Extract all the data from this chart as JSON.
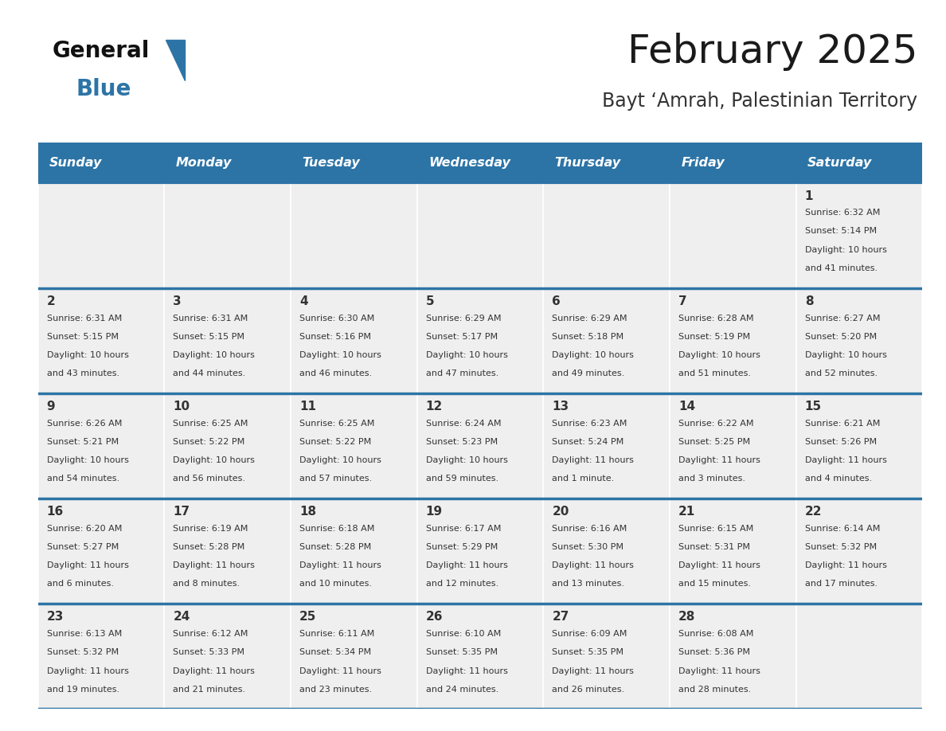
{
  "title": "February 2025",
  "subtitle": "Bayt ‘Amrah, Palestinian Territory",
  "header_color": "#2D74A6",
  "header_text_color": "#FFFFFF",
  "day_names": [
    "Sunday",
    "Monday",
    "Tuesday",
    "Wednesday",
    "Thursday",
    "Friday",
    "Saturday"
  ],
  "bg_color": "#FFFFFF",
  "cell_bg": "#EFEFEF",
  "divider_color": "#2D74A6",
  "text_color": "#333333",
  "logo_text_color": "#111111",
  "logo_blue_color": "#2D74A6",
  "days": [
    {
      "day": 1,
      "col": 6,
      "row": 0,
      "sunrise": "6:32 AM",
      "sunset": "5:14 PM",
      "daylight": "10 hours and 41 minutes."
    },
    {
      "day": 2,
      "col": 0,
      "row": 1,
      "sunrise": "6:31 AM",
      "sunset": "5:15 PM",
      "daylight": "10 hours and 43 minutes."
    },
    {
      "day": 3,
      "col": 1,
      "row": 1,
      "sunrise": "6:31 AM",
      "sunset": "5:15 PM",
      "daylight": "10 hours and 44 minutes."
    },
    {
      "day": 4,
      "col": 2,
      "row": 1,
      "sunrise": "6:30 AM",
      "sunset": "5:16 PM",
      "daylight": "10 hours and 46 minutes."
    },
    {
      "day": 5,
      "col": 3,
      "row": 1,
      "sunrise": "6:29 AM",
      "sunset": "5:17 PM",
      "daylight": "10 hours and 47 minutes."
    },
    {
      "day": 6,
      "col": 4,
      "row": 1,
      "sunrise": "6:29 AM",
      "sunset": "5:18 PM",
      "daylight": "10 hours and 49 minutes."
    },
    {
      "day": 7,
      "col": 5,
      "row": 1,
      "sunrise": "6:28 AM",
      "sunset": "5:19 PM",
      "daylight": "10 hours and 51 minutes."
    },
    {
      "day": 8,
      "col": 6,
      "row": 1,
      "sunrise": "6:27 AM",
      "sunset": "5:20 PM",
      "daylight": "10 hours and 52 minutes."
    },
    {
      "day": 9,
      "col": 0,
      "row": 2,
      "sunrise": "6:26 AM",
      "sunset": "5:21 PM",
      "daylight": "10 hours and 54 minutes."
    },
    {
      "day": 10,
      "col": 1,
      "row": 2,
      "sunrise": "6:25 AM",
      "sunset": "5:22 PM",
      "daylight": "10 hours and 56 minutes."
    },
    {
      "day": 11,
      "col": 2,
      "row": 2,
      "sunrise": "6:25 AM",
      "sunset": "5:22 PM",
      "daylight": "10 hours and 57 minutes."
    },
    {
      "day": 12,
      "col": 3,
      "row": 2,
      "sunrise": "6:24 AM",
      "sunset": "5:23 PM",
      "daylight": "10 hours and 59 minutes."
    },
    {
      "day": 13,
      "col": 4,
      "row": 2,
      "sunrise": "6:23 AM",
      "sunset": "5:24 PM",
      "daylight": "11 hours and 1 minute."
    },
    {
      "day": 14,
      "col": 5,
      "row": 2,
      "sunrise": "6:22 AM",
      "sunset": "5:25 PM",
      "daylight": "11 hours and 3 minutes."
    },
    {
      "day": 15,
      "col": 6,
      "row": 2,
      "sunrise": "6:21 AM",
      "sunset": "5:26 PM",
      "daylight": "11 hours and 4 minutes."
    },
    {
      "day": 16,
      "col": 0,
      "row": 3,
      "sunrise": "6:20 AM",
      "sunset": "5:27 PM",
      "daylight": "11 hours and 6 minutes."
    },
    {
      "day": 17,
      "col": 1,
      "row": 3,
      "sunrise": "6:19 AM",
      "sunset": "5:28 PM",
      "daylight": "11 hours and 8 minutes."
    },
    {
      "day": 18,
      "col": 2,
      "row": 3,
      "sunrise": "6:18 AM",
      "sunset": "5:28 PM",
      "daylight": "11 hours and 10 minutes."
    },
    {
      "day": 19,
      "col": 3,
      "row": 3,
      "sunrise": "6:17 AM",
      "sunset": "5:29 PM",
      "daylight": "11 hours and 12 minutes."
    },
    {
      "day": 20,
      "col": 4,
      "row": 3,
      "sunrise": "6:16 AM",
      "sunset": "5:30 PM",
      "daylight": "11 hours and 13 minutes."
    },
    {
      "day": 21,
      "col": 5,
      "row": 3,
      "sunrise": "6:15 AM",
      "sunset": "5:31 PM",
      "daylight": "11 hours and 15 minutes."
    },
    {
      "day": 22,
      "col": 6,
      "row": 3,
      "sunrise": "6:14 AM",
      "sunset": "5:32 PM",
      "daylight": "11 hours and 17 minutes."
    },
    {
      "day": 23,
      "col": 0,
      "row": 4,
      "sunrise": "6:13 AM",
      "sunset": "5:32 PM",
      "daylight": "11 hours and 19 minutes."
    },
    {
      "day": 24,
      "col": 1,
      "row": 4,
      "sunrise": "6:12 AM",
      "sunset": "5:33 PM",
      "daylight": "11 hours and 21 minutes."
    },
    {
      "day": 25,
      "col": 2,
      "row": 4,
      "sunrise": "6:11 AM",
      "sunset": "5:34 PM",
      "daylight": "11 hours and 23 minutes."
    },
    {
      "day": 26,
      "col": 3,
      "row": 4,
      "sunrise": "6:10 AM",
      "sunset": "5:35 PM",
      "daylight": "11 hours and 24 minutes."
    },
    {
      "day": 27,
      "col": 4,
      "row": 4,
      "sunrise": "6:09 AM",
      "sunset": "5:35 PM",
      "daylight": "11 hours and 26 minutes."
    },
    {
      "day": 28,
      "col": 5,
      "row": 4,
      "sunrise": "6:08 AM",
      "sunset": "5:36 PM",
      "daylight": "11 hours and 28 minutes."
    }
  ]
}
